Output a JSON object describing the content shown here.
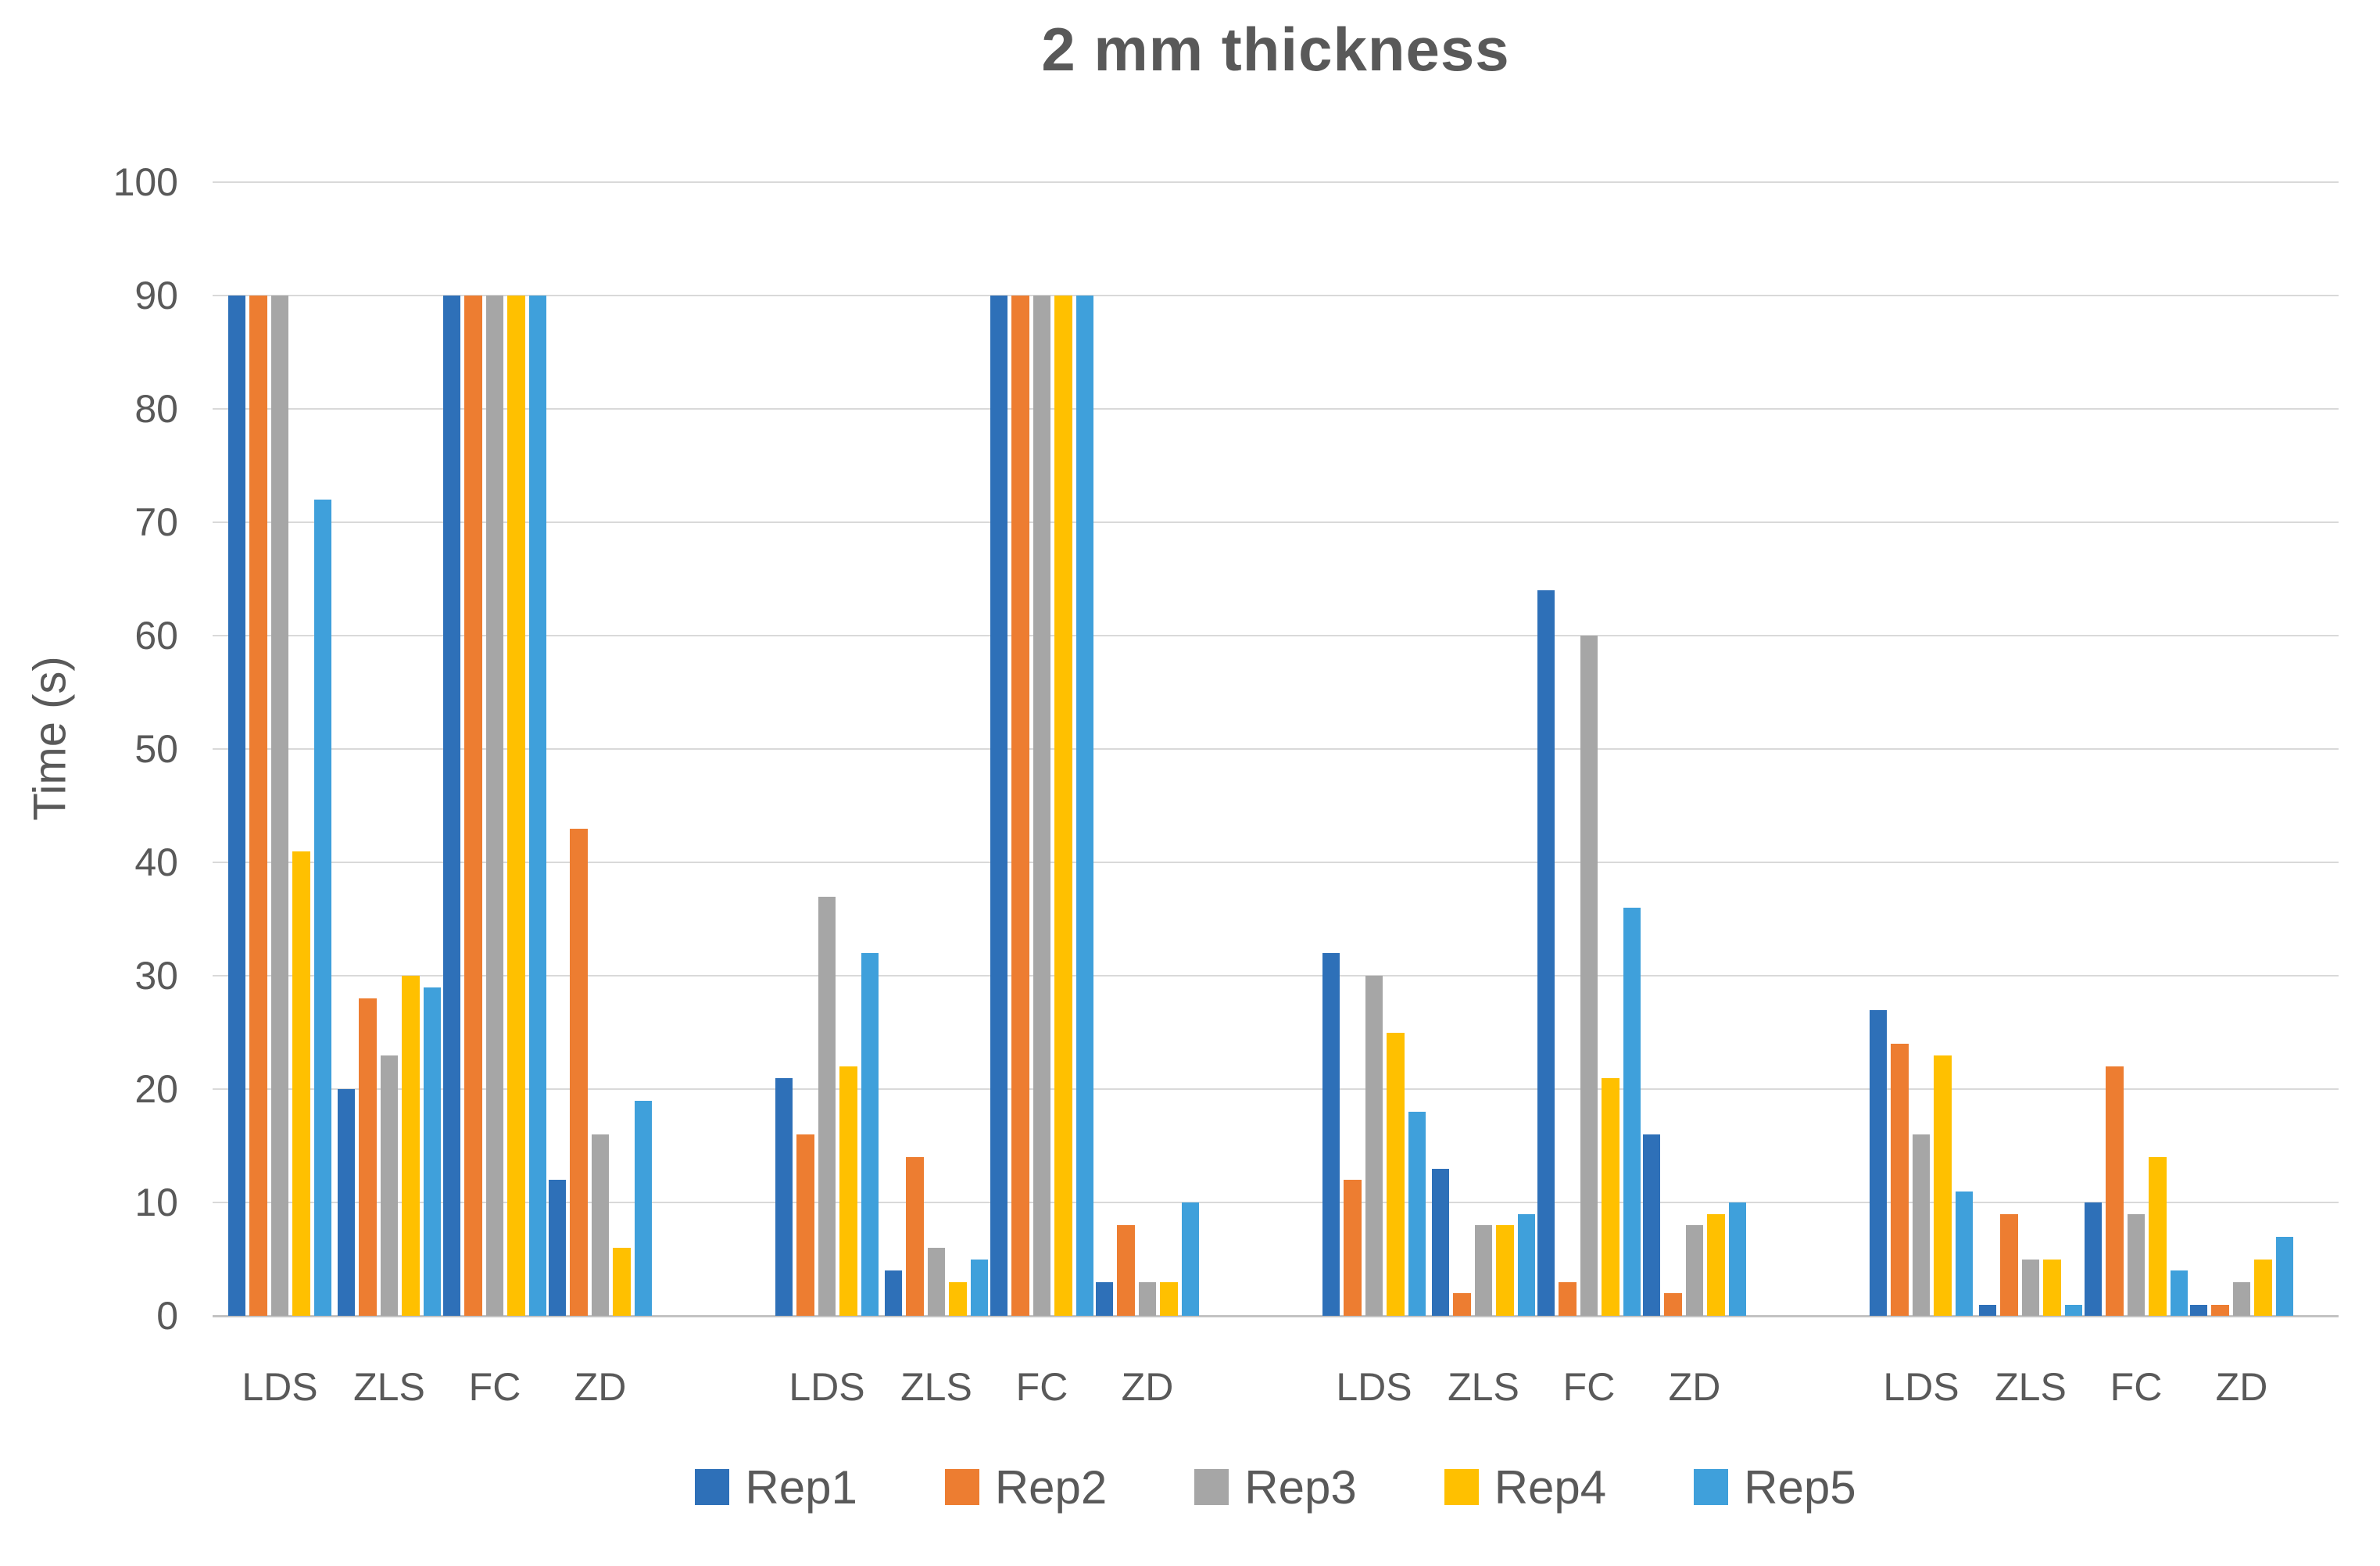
{
  "title": "2 mm thickness",
  "chart_data": {
    "type": "bar",
    "title": "2 mm thickness",
    "ylabel": "Time (s)",
    "ylim": [
      0,
      100
    ],
    "yticks": [
      "100",
      "90",
      "80",
      "70",
      "60",
      "50",
      "40",
      "30",
      "20",
      "10",
      "0"
    ],
    "grid": true,
    "legend_position": "bottom",
    "cluster_count": 4,
    "categories_per_cluster": [
      "LDS",
      "ZLS",
      "FC",
      "ZD"
    ],
    "series": [
      {
        "name": "Rep1",
        "color": "#2E70B8",
        "values": [
          [
            90,
            20,
            90,
            12
          ],
          [
            21,
            4,
            90,
            3
          ],
          [
            32,
            13,
            64,
            16
          ],
          [
            27,
            1,
            10,
            1
          ]
        ]
      },
      {
        "name": "Rep2",
        "color": "#ED7D31",
        "values": [
          [
            90,
            28,
            90,
            43
          ],
          [
            16,
            14,
            90,
            8
          ],
          [
            12,
            2,
            3,
            2
          ],
          [
            24,
            9,
            22,
            1
          ]
        ]
      },
      {
        "name": "Rep3",
        "color": "#A6A6A6",
        "values": [
          [
            90,
            23,
            90,
            16
          ],
          [
            37,
            6,
            90,
            3
          ],
          [
            30,
            8,
            60,
            8
          ],
          [
            16,
            5,
            9,
            3
          ]
        ]
      },
      {
        "name": "Rep4",
        "color": "#FFC000",
        "values": [
          [
            41,
            30,
            90,
            6
          ],
          [
            22,
            3,
            90,
            3
          ],
          [
            25,
            8,
            21,
            9
          ],
          [
            23,
            5,
            14,
            5
          ]
        ]
      },
      {
        "name": "Rep5",
        "color": "#3FA0DB",
        "values": [
          [
            72,
            29,
            90,
            19
          ],
          [
            32,
            5,
            90,
            10
          ],
          [
            18,
            9,
            36,
            10
          ],
          [
            11,
            1,
            4,
            7
          ]
        ]
      }
    ],
    "text_color": "#595959",
    "gridline_color": "#D9D9D9"
  }
}
